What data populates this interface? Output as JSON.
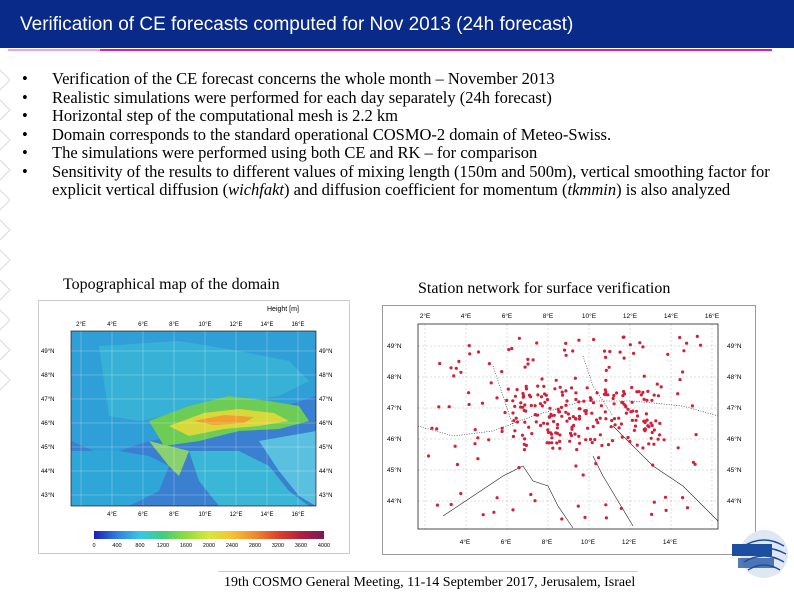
{
  "slide": {
    "title": "Verification of CE forecasts computed for Nov 2013 (24h forecast)"
  },
  "bullets": [
    {
      "parts": [
        "Verification of the CE forecast concerns the whole month – November 2013"
      ]
    },
    {
      "parts": [
        "Realistic simulations were performed for each day separately (24h forecast)"
      ]
    },
    {
      "parts": [
        "Horizontal step of the computational mesh is 2.2 km"
      ]
    },
    {
      "parts": [
        "Domain corresponds to the standard operational COSMO-2 domain of Meteo-Swiss."
      ]
    },
    {
      "parts": [
        "The simulations were performed using both CE and RK – for comparison"
      ]
    },
    {
      "parts": [
        "Sensitivity of the results to different values of mixing length (150m and 500m), vertical smoothing factor for explicit vertical diffusion (",
        "wichfakt",
        ") and diffusion coefficient for momentum (",
        "tkmmin",
        ") is also analyzed"
      ]
    }
  ],
  "bullet_symbol": "•",
  "figures": {
    "left_caption": "Topographical map of the domain",
    "right_caption": "Station network for surface verification",
    "left_map": {
      "legend_title": "Height [m]",
      "lon_labels": [
        "2°E",
        "4°E",
        "6°E",
        "8°E",
        "10°E",
        "12°E",
        "14°E",
        "16°E"
      ],
      "lat_labels": [
        "49°N",
        "48°N",
        "47°N",
        "46°N",
        "45°N",
        "44°N",
        "43°N"
      ],
      "colorbar_ticks": [
        "0",
        "400",
        "800",
        "1200",
        "1600",
        "2000",
        "2400",
        "2800",
        "3200",
        "3600",
        "4000"
      ]
    },
    "right_map": {
      "lon_labels_top": [
        "2°E",
        "4°E",
        "6°E",
        "8°E",
        "10°E",
        "12°E",
        "14°E",
        "16°E"
      ],
      "lon_labels_bottom": [
        "4°E",
        "6°E",
        "8°E",
        "10°E",
        "12°E",
        "14°E"
      ],
      "lat_labels": [
        "49°N",
        "48°N",
        "47°N",
        "46°N",
        "45°N",
        "44°N"
      ]
    }
  },
  "footer": {
    "text": "19th COSMO General Meeting, 11-14 September 2017, Jerusalem, Israel"
  },
  "colors": {
    "header_bg": "#0a2a8a",
    "title_text": "#ffffff",
    "accent_rule": "#d020d0",
    "station_dot": "#d0213a"
  },
  "icons": [
    "cosmo-logo"
  ]
}
